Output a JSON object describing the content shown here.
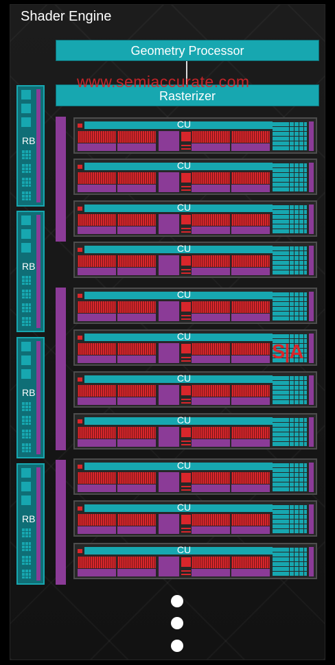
{
  "title": "Shader Engine",
  "geometry_processor": "Geometry Processor",
  "rasterizer": "Rasterizer",
  "watermark": "www.semiaccurate.com",
  "sa_logo": "S|A",
  "rb_label": "RB",
  "cu_label": "CU",
  "rb_block_count": 4,
  "cu_count": 11,
  "continuation_dots": 3,
  "colors": {
    "teal": "#17a7b0",
    "purple": "#8b3b97",
    "red": "#d8262b",
    "background": "#161616"
  }
}
